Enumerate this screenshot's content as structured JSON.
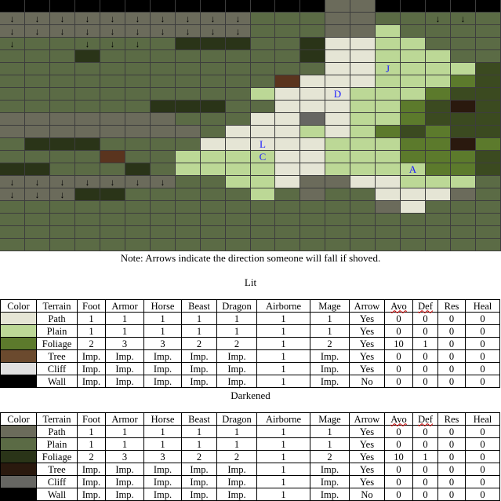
{
  "map": {
    "palette": {
      "B": "#000000",
      "G": "#5b6b45",
      "DG": "#2a3418",
      "PL": "#bcd896",
      "PA": "#e5e5d5",
      "RT": "#6b6b5b",
      "CF": "#666662",
      "TR": "#5a341e",
      "TD": "#2a190e",
      "FL": "#5c7a2c",
      "FD": "#3b4a20"
    },
    "rows": [
      "B B B B B B B B B B B B B RT RT B B B B B",
      "RT RT RT RT RT RT RT RT RT RT G G G RT RT G G G G G",
      "RT RT RT RT RT RT RT RT RT RT G G G RT RT PL G G G G",
      "G G G G G G G DG DG DG G G DG PA PA PL PL G G G",
      "G G G DG G G G G G G G G DG PA PA PL PL PL G G",
      "G G G G G G G G G G G G G PA PA PL PL PL PL FD",
      "G G G G G G G G G G G TR PA PA PA PL PL PL FL FD",
      "G G G G G G G G G G PL PA PA PA PL PL PL FL FD FD",
      "G G G G G G DG DG DG G G PA PA PA PL PL FL FD TD FD",
      "RT RT RT RT RT RT RT G G G PA PA CF PA PL PL FL FD FD FD",
      "RT RT RT RT RT RT RT RT G PA PA PA PL PA PL FL FD FL FD FD",
      "G DG DG DG G G G G PA PA PA PA PA PL PL PL FL FL TD FL",
      "G G G G TR G G PL PL PL PL PA PA PL PL PL FL FL FL FD",
      "DG DG G G G DG G PL PL PL PL PA PA PL PL PL PL FL FL FD",
      "RT RT RT RT RT RT RT G G PL PL PA RT RT PA PA PL PL PL G",
      "RT RT RT DG DG G G G G G PL G RT G G PA PA PA RT G",
      "G G G G G G G G G G G G G G G RT PA G G G",
      "G G G G G G G G G G G G G G G G G G G G",
      "G G G G G G G G G G G G G G G G G G G G",
      "G G G G G G G G G G G G G G G G G G G G"
    ],
    "arrows": [
      [
        1,
        0
      ],
      [
        1,
        1
      ],
      [
        1,
        2
      ],
      [
        1,
        3
      ],
      [
        1,
        4
      ],
      [
        1,
        5
      ],
      [
        1,
        6
      ],
      [
        1,
        7
      ],
      [
        1,
        8
      ],
      [
        1,
        9
      ],
      [
        1,
        17
      ],
      [
        1,
        18
      ],
      [
        2,
        0
      ],
      [
        2,
        1
      ],
      [
        2,
        2
      ],
      [
        2,
        3
      ],
      [
        2,
        4
      ],
      [
        2,
        5
      ],
      [
        2,
        6
      ],
      [
        2,
        7
      ],
      [
        2,
        8
      ],
      [
        2,
        9
      ],
      [
        3,
        0
      ],
      [
        3,
        3
      ],
      [
        3,
        4
      ],
      [
        3,
        5
      ],
      [
        14,
        0
      ],
      [
        14,
        1
      ],
      [
        14,
        2
      ],
      [
        14,
        3
      ],
      [
        14,
        4
      ],
      [
        14,
        5
      ],
      [
        14,
        6
      ],
      [
        15,
        0
      ],
      [
        15,
        1
      ],
      [
        15,
        2
      ]
    ],
    "arrow_glyph": "↓",
    "units": [
      {
        "label": "J",
        "row": 5,
        "col": 15
      },
      {
        "label": "D",
        "row": 7,
        "col": 13
      },
      {
        "label": "L",
        "row": 11,
        "col": 10
      },
      {
        "label": "C",
        "row": 12,
        "col": 10
      },
      {
        "label": "A",
        "row": 13,
        "col": 16
      }
    ]
  },
  "note": "Note: Arrows indicate the direction someone will fall if shoved.",
  "lit": {
    "title": "Lit",
    "headers": [
      "Color",
      "Terrain",
      "Foot",
      "Armor",
      "Horse",
      "Beast",
      "Dragon",
      "Airborne",
      "Mage",
      "Arrow",
      "Avo",
      "Def",
      "Res",
      "Heal"
    ],
    "rows": [
      {
        "color": "#e5e5d5",
        "cells": [
          "Path",
          "1",
          "1",
          "1",
          "1",
          "1",
          "1",
          "1",
          "Yes",
          "0",
          "0",
          "0",
          "0"
        ]
      },
      {
        "color": "#bcd896",
        "cells": [
          "Plain",
          "1",
          "1",
          "1",
          "1",
          "1",
          "1",
          "1",
          "Yes",
          "0",
          "0",
          "0",
          "0"
        ]
      },
      {
        "color": "#5c7a2c",
        "cells": [
          "Foliage",
          "2",
          "3",
          "3",
          "2",
          "2",
          "1",
          "2",
          "Yes",
          "10",
          "1",
          "0",
          "0"
        ]
      },
      {
        "color": "#6b4a2e",
        "cells": [
          "Tree",
          "Imp.",
          "Imp.",
          "Imp.",
          "Imp.",
          "Imp.",
          "1",
          "Imp.",
          "Yes",
          "0",
          "0",
          "0",
          "0"
        ]
      },
      {
        "color": "#e0e0e0",
        "cells": [
          "Cliff",
          "Imp.",
          "Imp.",
          "Imp.",
          "Imp.",
          "Imp.",
          "1",
          "Imp.",
          "Yes",
          "0",
          "0",
          "0",
          "0"
        ]
      },
      {
        "color": "#000000",
        "cells": [
          "Wall",
          "Imp.",
          "Imp.",
          "Imp.",
          "Imp.",
          "Imp.",
          "1",
          "Imp.",
          "No",
          "0",
          "0",
          "0",
          "0"
        ]
      }
    ]
  },
  "darkened": {
    "title": "Darkened",
    "headers": [
      "Color",
      "Terrain",
      "Foot",
      "Armor",
      "Horse",
      "Beast",
      "Dragon",
      "Airborne",
      "Mage",
      "Arrow",
      "Avo",
      "Def",
      "Res",
      "Heal"
    ],
    "rows": [
      {
        "color": "#6b6b5b",
        "cells": [
          "Path",
          "1",
          "1",
          "1",
          "1",
          "1",
          "1",
          "1",
          "Yes",
          "0",
          "0",
          "0",
          "0"
        ]
      },
      {
        "color": "#5b6b45",
        "cells": [
          "Plain",
          "1",
          "1",
          "1",
          "1",
          "1",
          "1",
          "1",
          "Yes",
          "0",
          "0",
          "0",
          "0"
        ]
      },
      {
        "color": "#2a3418",
        "cells": [
          "Foliage",
          "2",
          "3",
          "3",
          "2",
          "2",
          "1",
          "2",
          "Yes",
          "10",
          "1",
          "0",
          "0"
        ]
      },
      {
        "color": "#2a190e",
        "cells": [
          "Tree",
          "Imp.",
          "Imp.",
          "Imp.",
          "Imp.",
          "Imp.",
          "1",
          "Imp.",
          "Yes",
          "0",
          "0",
          "0",
          "0"
        ]
      },
      {
        "color": "#666662",
        "cells": [
          "Cliff",
          "Imp.",
          "Imp.",
          "Imp.",
          "Imp.",
          "Imp.",
          "1",
          "Imp.",
          "Yes",
          "0",
          "0",
          "0",
          "0"
        ]
      },
      {
        "color": "#000000",
        "cells": [
          "Wall",
          "Imp.",
          "Imp.",
          "Imp.",
          "Imp.",
          "Imp.",
          "1",
          "Imp.",
          "No",
          "0",
          "0",
          "0",
          "0"
        ]
      }
    ]
  }
}
